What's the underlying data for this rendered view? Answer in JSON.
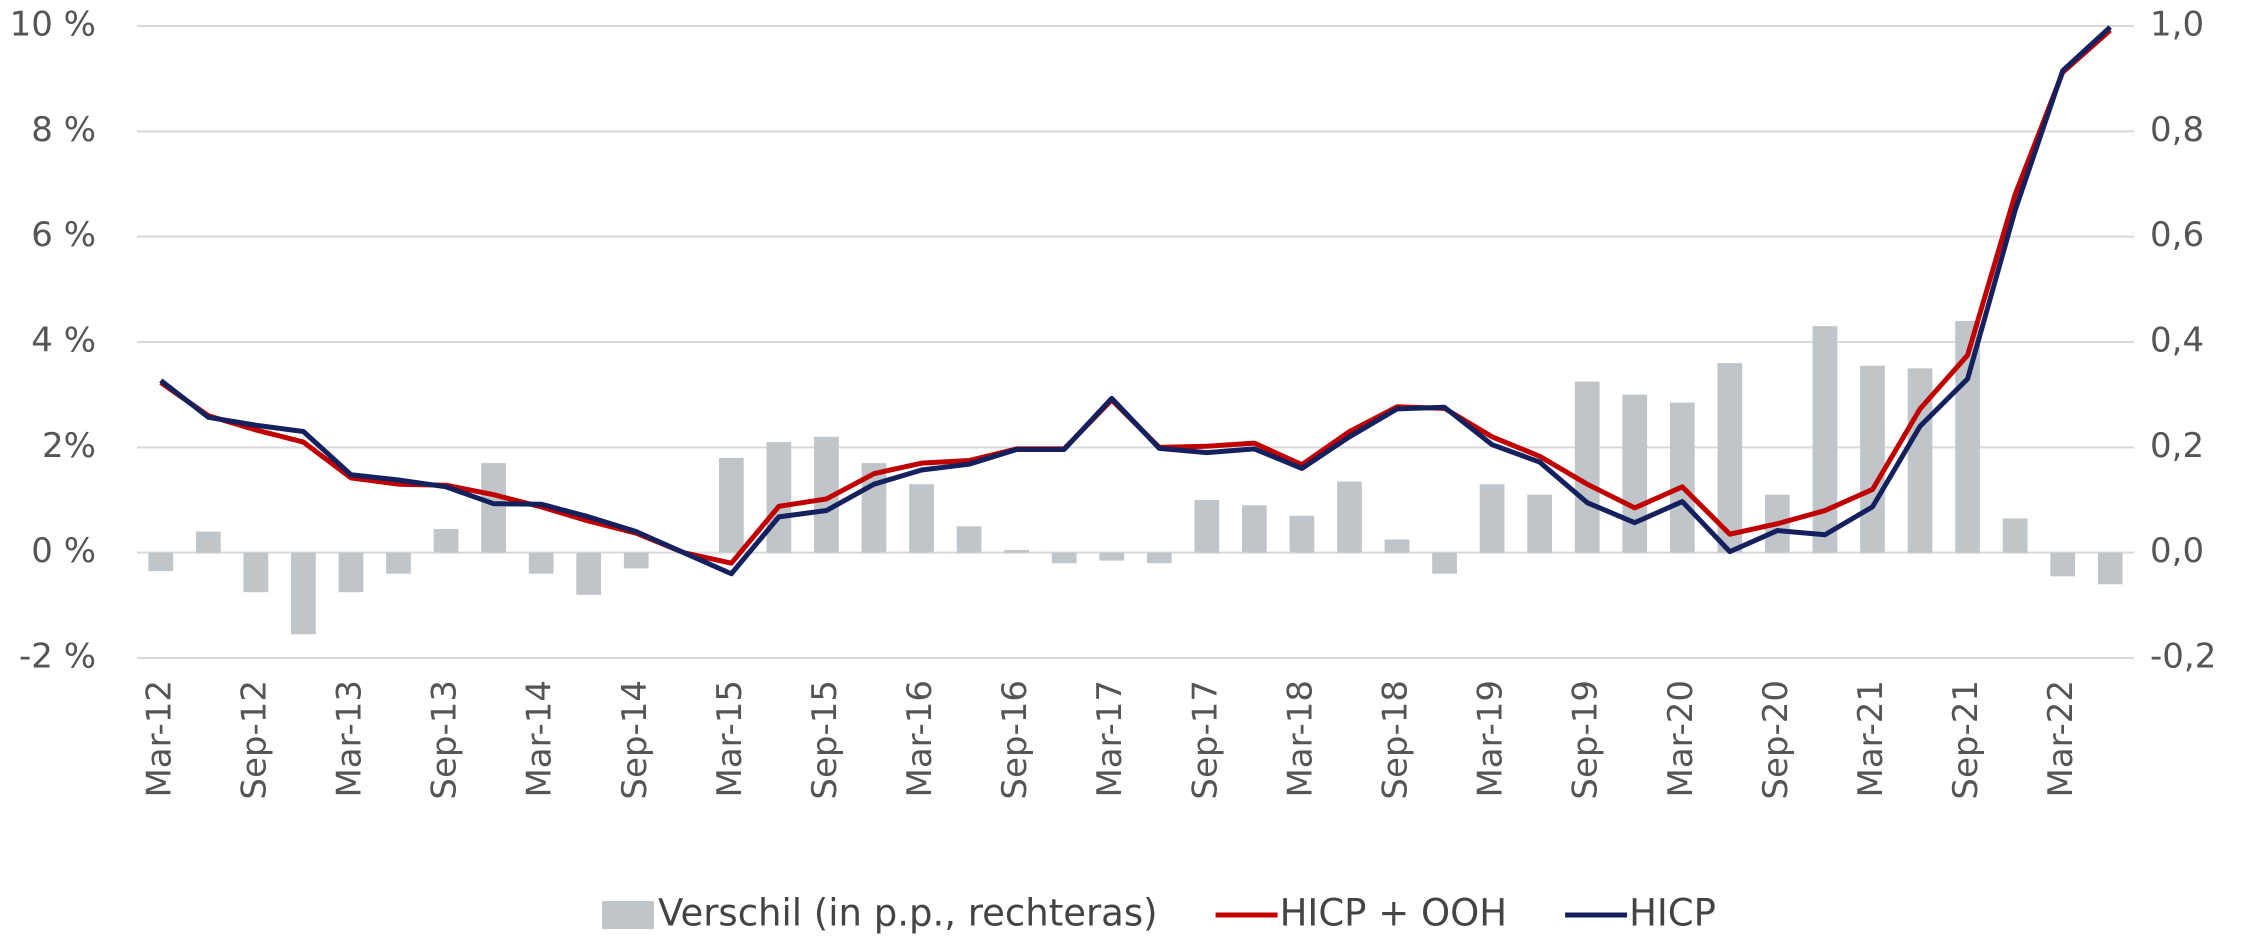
{
  "chart_data": {
    "type": "combo",
    "categories": [
      "Mar-12",
      null,
      "Sep-12",
      null,
      "Mar-13",
      null,
      "Sep-13",
      null,
      "Mar-14",
      null,
      "Sep-14",
      null,
      "Mar-15",
      null,
      "Sep-15",
      null,
      "Mar-16",
      null,
      "Sep-16",
      null,
      "Mar-17",
      null,
      "Sep-17",
      null,
      "Mar-18",
      null,
      "Sep-18",
      null,
      "Mar-19",
      null,
      "Sep-19",
      null,
      "Mar-20",
      null,
      "Sep-20",
      null,
      "Mar-21",
      null,
      "Sep-21",
      null,
      "Mar-22",
      null
    ],
    "series": [
      {
        "name": "Verschil (in p.p., rechteras)",
        "type": "bar",
        "axis": "y2",
        "color": "#bfc5c9",
        "values": [
          -0.035,
          0.04,
          -0.075,
          -0.155,
          -0.075,
          -0.04,
          0.045,
          0.17,
          -0.04,
          -0.08,
          -0.03,
          0,
          0.18,
          0.21,
          0.22,
          0.17,
          0.13,
          0.05,
          0.005,
          -0.02,
          -0.015,
          -0.02,
          0.1,
          0.09,
          0.07,
          0.135,
          0.025,
          -0.04,
          0.13,
          0.11,
          0.325,
          0.3,
          0.285,
          0.36,
          0.11,
          0.43,
          0.355,
          0.35,
          0.44,
          0.065,
          -0.045,
          -0.06
        ]
      },
      {
        "name": "HICP + OOH",
        "type": "line",
        "color": "#c00000",
        "values": [
          3.23,
          2.6,
          2.33,
          2.1,
          1.42,
          1.3,
          1.28,
          1.1,
          0.87,
          0.6,
          0.37,
          0.0,
          -0.2,
          0.88,
          1.02,
          1.5,
          1.7,
          1.75,
          1.97,
          1.97,
          2.9,
          2.0,
          2.02,
          2.08,
          1.67,
          2.3,
          2.77,
          2.74,
          2.2,
          1.83,
          1.3,
          0.85,
          1.25,
          0.35,
          0.55,
          0.8,
          1.2,
          2.73,
          3.75,
          6.8,
          9.12,
          9.92
        ]
      },
      {
        "name": "HICP",
        "type": "line",
        "color": "#14215e",
        "values": [
          3.27,
          2.57,
          2.42,
          2.3,
          1.48,
          1.38,
          1.25,
          0.93,
          0.92,
          0.68,
          0.4,
          0.0,
          -0.4,
          0.68,
          0.8,
          1.3,
          1.57,
          1.68,
          1.96,
          1.96,
          2.93,
          1.98,
          1.9,
          1.97,
          1.6,
          2.2,
          2.73,
          2.76,
          2.05,
          1.72,
          0.95,
          0.57,
          0.97,
          0.02,
          0.42,
          0.34,
          0.87,
          2.4,
          3.3,
          6.5,
          9.15,
          9.98
        ]
      }
    ],
    "ylim": [
      -2,
      10
    ],
    "yticks": [
      {
        "value": -2,
        "label": "-2 %"
      },
      {
        "value": 0,
        "label": "0 %"
      },
      {
        "value": 2,
        "label": "2%"
      },
      {
        "value": 4,
        "label": "4 %"
      },
      {
        "value": 6,
        "label": "6 %"
      },
      {
        "value": 8,
        "label": "8 %"
      },
      {
        "value": 10,
        "label": "10 %"
      }
    ],
    "y2lim": [
      -0.2,
      1.0
    ],
    "y2ticks": [
      {
        "value": -0.2,
        "label": "-0,2"
      },
      {
        "value": 0,
        "label": "0,0"
      },
      {
        "value": 0.2,
        "label": "0,2"
      },
      {
        "value": 0.4,
        "label": "0,4"
      },
      {
        "value": 0.6,
        "label": "0,6"
      },
      {
        "value": 0.8,
        "label": "0,8"
      },
      {
        "value": 1.0,
        "label": "1,0"
      }
    ],
    "grid": true,
    "legend": "bottom"
  }
}
